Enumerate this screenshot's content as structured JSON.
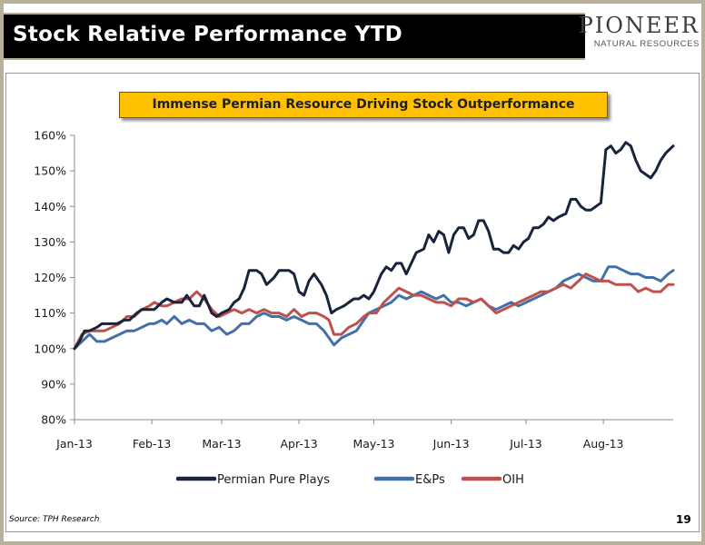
{
  "slide": {
    "title": "Stock Relative Performance YTD",
    "logo_name": "PIONEER",
    "logo_sub": "NATURAL RESOURCES",
    "banner": "Immense Permian Resource Driving Stock Outperformance",
    "source": "Source: TPH Research",
    "page_number": "19"
  },
  "chart_data": {
    "type": "line",
    "title": "",
    "xlabel": "",
    "ylabel": "",
    "ylim": [
      80,
      160
    ],
    "yticks": [
      80,
      90,
      100,
      110,
      120,
      130,
      140,
      150,
      160
    ],
    "ytick_labels": [
      "80%",
      "90%",
      "100%",
      "110%",
      "120%",
      "130%",
      "140%",
      "150%",
      "160%"
    ],
    "x_domain_days": [
      0,
      240
    ],
    "xticks": [
      {
        "day": 0,
        "label": "Jan-13"
      },
      {
        "day": 31,
        "label": "Feb-13"
      },
      {
        "day": 59,
        "label": "Mar-13"
      },
      {
        "day": 90,
        "label": "Apr-13"
      },
      {
        "day": 120,
        "label": "May-13"
      },
      {
        "day": 151,
        "label": "Jun-13"
      },
      {
        "day": 181,
        "label": "Jul-13"
      },
      {
        "day": 212,
        "label": "Aug-13"
      }
    ],
    "legend_position": "bottom",
    "grid": false,
    "series": [
      {
        "name": "Permian Pure Plays",
        "color": "#17243b",
        "points": [
          [
            0,
            100
          ],
          [
            2,
            102
          ],
          [
            4,
            105
          ],
          [
            6,
            105
          ],
          [
            9,
            106
          ],
          [
            11,
            107
          ],
          [
            14,
            107
          ],
          [
            17,
            107
          ],
          [
            20,
            108
          ],
          [
            22,
            108
          ],
          [
            25,
            110
          ],
          [
            27,
            111
          ],
          [
            30,
            111
          ],
          [
            32,
            111
          ],
          [
            35,
            113
          ],
          [
            37,
            114
          ],
          [
            40,
            113
          ],
          [
            43,
            113
          ],
          [
            45,
            115
          ],
          [
            48,
            112
          ],
          [
            50,
            112
          ],
          [
            52,
            115
          ],
          [
            55,
            110
          ],
          [
            57,
            109
          ],
          [
            59,
            110
          ],
          [
            62,
            111
          ],
          [
            64,
            113
          ],
          [
            66,
            114
          ],
          [
            68,
            117
          ],
          [
            70,
            122
          ],
          [
            73,
            122
          ],
          [
            75,
            121
          ],
          [
            77,
            118
          ],
          [
            80,
            120
          ],
          [
            82,
            122
          ],
          [
            84,
            122
          ],
          [
            86,
            122
          ],
          [
            88,
            121
          ],
          [
            90,
            116
          ],
          [
            92,
            115
          ],
          [
            94,
            119
          ],
          [
            96,
            121
          ],
          [
            99,
            118
          ],
          [
            101,
            115
          ],
          [
            103,
            110
          ],
          [
            105,
            111
          ],
          [
            108,
            112
          ],
          [
            110,
            113
          ],
          [
            112,
            114
          ],
          [
            114,
            114
          ],
          [
            116,
            115
          ],
          [
            118,
            114
          ],
          [
            120,
            116
          ],
          [
            123,
            121
          ],
          [
            125,
            123
          ],
          [
            127,
            122
          ],
          [
            129,
            124
          ],
          [
            131,
            124
          ],
          [
            133,
            121
          ],
          [
            135,
            124
          ],
          [
            137,
            127
          ],
          [
            140,
            128
          ],
          [
            142,
            132
          ],
          [
            144,
            130
          ],
          [
            146,
            133
          ],
          [
            148,
            132
          ],
          [
            150,
            127
          ],
          [
            152,
            132
          ],
          [
            154,
            134
          ],
          [
            156,
            134
          ],
          [
            158,
            131
          ],
          [
            160,
            132
          ],
          [
            162,
            136
          ],
          [
            164,
            136
          ],
          [
            166,
            133
          ],
          [
            168,
            128
          ],
          [
            170,
            128
          ],
          [
            172,
            127
          ],
          [
            174,
            127
          ],
          [
            176,
            129
          ],
          [
            178,
            128
          ],
          [
            180,
            130
          ],
          [
            182,
            131
          ],
          [
            184,
            134
          ],
          [
            186,
            134
          ],
          [
            188,
            135
          ],
          [
            190,
            137
          ],
          [
            192,
            136
          ],
          [
            194,
            137
          ],
          [
            197,
            138
          ],
          [
            199,
            142
          ],
          [
            201,
            142
          ],
          [
            203,
            140
          ],
          [
            205,
            139
          ],
          [
            207,
            139
          ],
          [
            209,
            140
          ],
          [
            211,
            141
          ],
          [
            213,
            156
          ],
          [
            215,
            157
          ],
          [
            217,
            155
          ],
          [
            219,
            156
          ],
          [
            221,
            158
          ],
          [
            223,
            157
          ],
          [
            225,
            153
          ],
          [
            227,
            150
          ],
          [
            229,
            149
          ],
          [
            231,
            148
          ],
          [
            233,
            150
          ],
          [
            235,
            153
          ],
          [
            237,
            155
          ],
          [
            240,
            157
          ]
        ]
      },
      {
        "name": "E&Ps",
        "color": "#4370a8",
        "points": [
          [
            0,
            100
          ],
          [
            3,
            102
          ],
          [
            6,
            104
          ],
          [
            9,
            102
          ],
          [
            12,
            102
          ],
          [
            15,
            103
          ],
          [
            18,
            104
          ],
          [
            21,
            105
          ],
          [
            24,
            105
          ],
          [
            27,
            106
          ],
          [
            30,
            107
          ],
          [
            32,
            107
          ],
          [
            35,
            108
          ],
          [
            37,
            107
          ],
          [
            40,
            109
          ],
          [
            43,
            107
          ],
          [
            46,
            108
          ],
          [
            49,
            107
          ],
          [
            52,
            107
          ],
          [
            55,
            105
          ],
          [
            58,
            106
          ],
          [
            61,
            104
          ],
          [
            64,
            105
          ],
          [
            67,
            107
          ],
          [
            70,
            107
          ],
          [
            73,
            109
          ],
          [
            76,
            110
          ],
          [
            79,
            109
          ],
          [
            82,
            109
          ],
          [
            85,
            108
          ],
          [
            88,
            109
          ],
          [
            91,
            108
          ],
          [
            94,
            107
          ],
          [
            97,
            107
          ],
          [
            100,
            105
          ],
          [
            102,
            103
          ],
          [
            104,
            101
          ],
          [
            107,
            103
          ],
          [
            110,
            104
          ],
          [
            113,
            105
          ],
          [
            116,
            108
          ],
          [
            118,
            110
          ],
          [
            121,
            111
          ],
          [
            124,
            112
          ],
          [
            127,
            113
          ],
          [
            130,
            115
          ],
          [
            133,
            114
          ],
          [
            136,
            115
          ],
          [
            139,
            116
          ],
          [
            142,
            115
          ],
          [
            145,
            114
          ],
          [
            148,
            115
          ],
          [
            151,
            113
          ],
          [
            154,
            113
          ],
          [
            157,
            112
          ],
          [
            160,
            113
          ],
          [
            163,
            114
          ],
          [
            166,
            112
          ],
          [
            169,
            111
          ],
          [
            172,
            112
          ],
          [
            175,
            113
          ],
          [
            178,
            112
          ],
          [
            181,
            113
          ],
          [
            184,
            114
          ],
          [
            187,
            115
          ],
          [
            190,
            116
          ],
          [
            193,
            117
          ],
          [
            196,
            119
          ],
          [
            199,
            120
          ],
          [
            202,
            121
          ],
          [
            205,
            120
          ],
          [
            208,
            119
          ],
          [
            211,
            119
          ],
          [
            214,
            123
          ],
          [
            217,
            123
          ],
          [
            220,
            122
          ],
          [
            223,
            121
          ],
          [
            226,
            121
          ],
          [
            229,
            120
          ],
          [
            232,
            120
          ],
          [
            235,
            119
          ],
          [
            238,
            121
          ],
          [
            240,
            122
          ]
        ]
      },
      {
        "name": "OIH",
        "color": "#c0504d",
        "points": [
          [
            0,
            100
          ],
          [
            3,
            104
          ],
          [
            6,
            105
          ],
          [
            9,
            105
          ],
          [
            12,
            105
          ],
          [
            15,
            106
          ],
          [
            18,
            107
          ],
          [
            21,
            109
          ],
          [
            24,
            109
          ],
          [
            27,
            111
          ],
          [
            30,
            112
          ],
          [
            32,
            113
          ],
          [
            35,
            112
          ],
          [
            37,
            112
          ],
          [
            40,
            113
          ],
          [
            43,
            114
          ],
          [
            46,
            114
          ],
          [
            49,
            116
          ],
          [
            52,
            114
          ],
          [
            55,
            111
          ],
          [
            58,
            109
          ],
          [
            61,
            110
          ],
          [
            64,
            111
          ],
          [
            67,
            110
          ],
          [
            70,
            111
          ],
          [
            73,
            110
          ],
          [
            76,
            111
          ],
          [
            79,
            110
          ],
          [
            82,
            110
          ],
          [
            85,
            109
          ],
          [
            88,
            111
          ],
          [
            91,
            109
          ],
          [
            94,
            110
          ],
          [
            97,
            110
          ],
          [
            100,
            109
          ],
          [
            102,
            108
          ],
          [
            104,
            104
          ],
          [
            107,
            104
          ],
          [
            110,
            106
          ],
          [
            113,
            107
          ],
          [
            116,
            109
          ],
          [
            118,
            110
          ],
          [
            121,
            110
          ],
          [
            124,
            113
          ],
          [
            127,
            115
          ],
          [
            130,
            117
          ],
          [
            133,
            116
          ],
          [
            136,
            115
          ],
          [
            139,
            115
          ],
          [
            142,
            114
          ],
          [
            145,
            113
          ],
          [
            148,
            113
          ],
          [
            151,
            112
          ],
          [
            154,
            114
          ],
          [
            157,
            114
          ],
          [
            160,
            113
          ],
          [
            163,
            114
          ],
          [
            166,
            112
          ],
          [
            169,
            110
          ],
          [
            172,
            111
          ],
          [
            175,
            112
          ],
          [
            178,
            113
          ],
          [
            181,
            114
          ],
          [
            184,
            115
          ],
          [
            187,
            116
          ],
          [
            190,
            116
          ],
          [
            193,
            117
          ],
          [
            196,
            118
          ],
          [
            199,
            117
          ],
          [
            202,
            119
          ],
          [
            205,
            121
          ],
          [
            208,
            120
          ],
          [
            211,
            119
          ],
          [
            214,
            119
          ],
          [
            217,
            118
          ],
          [
            220,
            118
          ],
          [
            223,
            118
          ],
          [
            226,
            116
          ],
          [
            229,
            117
          ],
          [
            232,
            116
          ],
          [
            235,
            116
          ],
          [
            238,
            118
          ],
          [
            240,
            118
          ]
        ]
      }
    ]
  }
}
